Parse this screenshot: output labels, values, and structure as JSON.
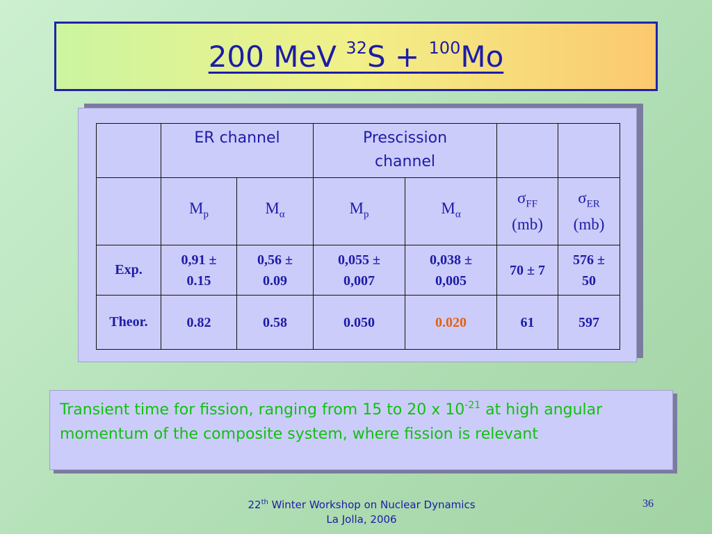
{
  "title": {
    "energy": "200 MeV",
    "proj_mass": "32",
    "proj": "S",
    "plus": "+",
    "targ_mass": "100",
    "targ": "Mo"
  },
  "table": {
    "headers": {
      "er_channel": "ER channel",
      "presc_line1": "Prescission",
      "presc_line2": "channel"
    },
    "symbols": {
      "m": "M",
      "p": "p",
      "alpha": "α",
      "sigma": "σ",
      "ff": "FF",
      "er": "ER",
      "unit": "(mb)"
    },
    "rows": [
      {
        "label": "Exp.",
        "cells": [
          {
            "l1": "0,91 ±",
            "l2": "0.15"
          },
          {
            "l1": "0,56 ±",
            "l2": "0.09"
          },
          {
            "l1": "0,055 ±",
            "l2": "0,007"
          },
          {
            "l1": "0,038 ±",
            "l2": "0,005"
          },
          {
            "l1": "70 ± 7",
            "l2": ""
          },
          {
            "l1": "576 ±",
            "l2": "50"
          }
        ]
      },
      {
        "label": "Theor.",
        "cells": [
          "0.82",
          "0.58",
          "0.050",
          "0.020",
          "61",
          "597"
        ]
      }
    ],
    "highlight_color": "#e2620e"
  },
  "note": {
    "text_before": "Transient time for fission, ranging from 15 to 20 x 10",
    "exponent": "-21",
    "text_after": " at high angular momentum of the composite system, where fission is relevant"
  },
  "footer": {
    "num": "22",
    "ord": "th",
    "rest": " Winter Workshop on Nuclear Dynamics",
    "line2": "La Jolla, 2006",
    "page": "36"
  }
}
